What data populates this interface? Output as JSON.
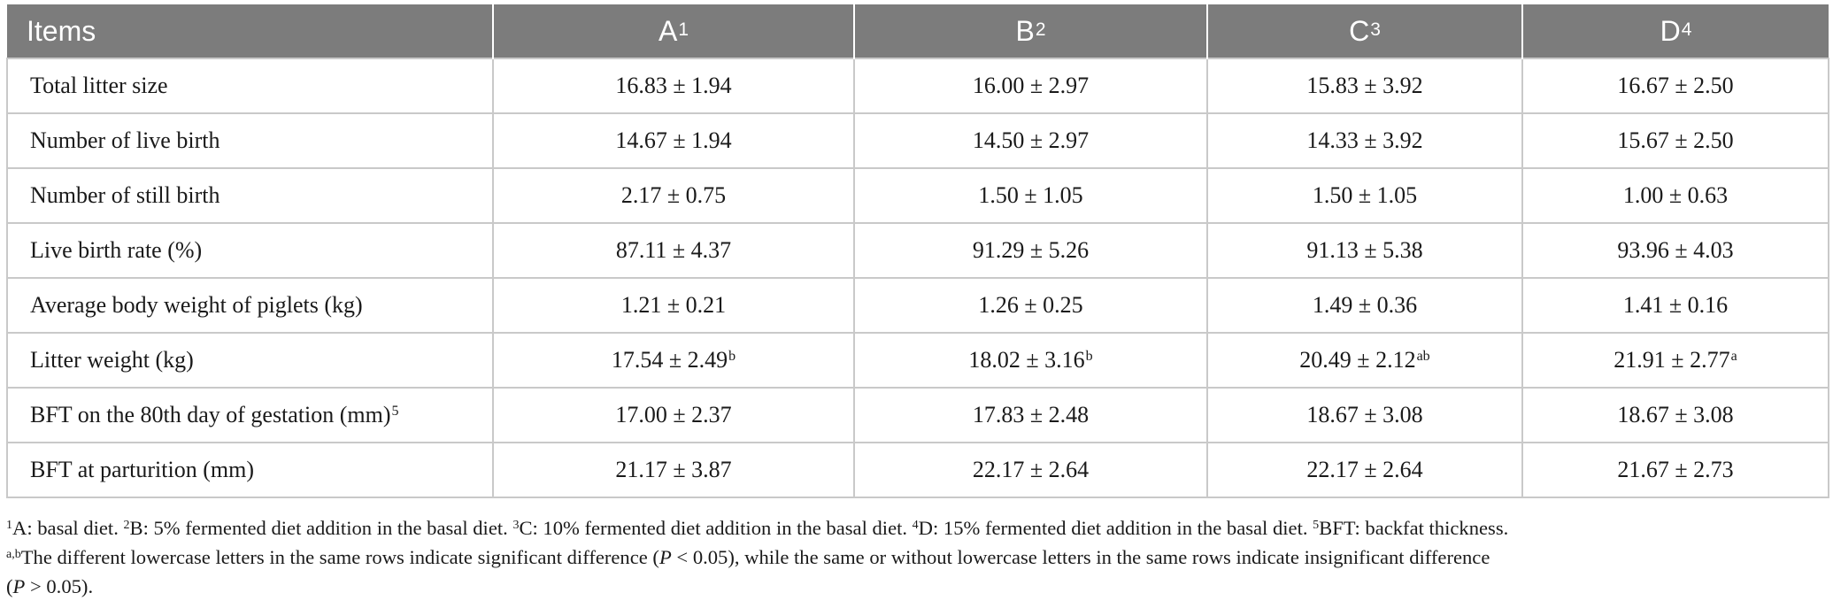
{
  "table": {
    "header": {
      "items": "Items",
      "cols": [
        {
          "label": "A",
          "sup": "1"
        },
        {
          "label": "B",
          "sup": "2"
        },
        {
          "label": "C",
          "sup": "3"
        },
        {
          "label": "D",
          "sup": "4"
        }
      ]
    },
    "rows": [
      {
        "item": "Total litter size",
        "item_sup": "",
        "cells": [
          {
            "v": "16.83 ± 1.94",
            "s": ""
          },
          {
            "v": "16.00 ± 2.97",
            "s": ""
          },
          {
            "v": "15.83 ± 3.92",
            "s": ""
          },
          {
            "v": "16.67 ± 2.50",
            "s": ""
          }
        ]
      },
      {
        "item": "Number of live birth",
        "item_sup": "",
        "cells": [
          {
            "v": "14.67 ± 1.94",
            "s": ""
          },
          {
            "v": "14.50 ± 2.97",
            "s": ""
          },
          {
            "v": "14.33 ± 3.92",
            "s": ""
          },
          {
            "v": "15.67 ± 2.50",
            "s": ""
          }
        ]
      },
      {
        "item": "Number of still birth",
        "item_sup": "",
        "cells": [
          {
            "v": "2.17 ± 0.75",
            "s": ""
          },
          {
            "v": "1.50 ± 1.05",
            "s": ""
          },
          {
            "v": "1.50 ± 1.05",
            "s": ""
          },
          {
            "v": "1.00 ± 0.63",
            "s": ""
          }
        ]
      },
      {
        "item": "Live birth rate (%)",
        "item_sup": "",
        "cells": [
          {
            "v": "87.11 ± 4.37",
            "s": ""
          },
          {
            "v": "91.29 ± 5.26",
            "s": ""
          },
          {
            "v": "91.13 ± 5.38",
            "s": ""
          },
          {
            "v": "93.96 ± 4.03",
            "s": ""
          }
        ]
      },
      {
        "item": "Average body weight of piglets (kg)",
        "item_sup": "",
        "cells": [
          {
            "v": "1.21 ± 0.21",
            "s": ""
          },
          {
            "v": "1.26 ± 0.25",
            "s": ""
          },
          {
            "v": "1.49 ± 0.36",
            "s": ""
          },
          {
            "v": "1.41 ± 0.16",
            "s": ""
          }
        ]
      },
      {
        "item": "Litter weight (kg)",
        "item_sup": "",
        "cells": [
          {
            "v": "17.54 ± 2.49",
            "s": "b"
          },
          {
            "v": "18.02 ± 3.16",
            "s": "b"
          },
          {
            "v": "20.49 ± 2.12",
            "s": "ab"
          },
          {
            "v": "21.91 ± 2.77",
            "s": "a"
          }
        ]
      },
      {
        "item": "BFT on the 80th day of gestation (mm)",
        "item_sup": "5",
        "cells": [
          {
            "v": "17.00 ± 2.37",
            "s": ""
          },
          {
            "v": "17.83 ± 2.48",
            "s": ""
          },
          {
            "v": "18.67 ± 3.08",
            "s": ""
          },
          {
            "v": "18.67 ± 3.08",
            "s": ""
          }
        ]
      },
      {
        "item": "BFT at parturition (mm)",
        "item_sup": "",
        "cells": [
          {
            "v": "21.17 ± 3.87",
            "s": ""
          },
          {
            "v": "22.17 ± 2.64",
            "s": ""
          },
          {
            "v": "22.17 ± 2.64",
            "s": ""
          },
          {
            "v": "21.67 ± 2.73",
            "s": ""
          }
        ]
      }
    ]
  },
  "footnotes": {
    "line1": [
      {
        "sup": "1",
        "text": "A: basal diet. "
      },
      {
        "sup": "2",
        "text": "B: 5% fermented diet addition in the basal diet. "
      },
      {
        "sup": "3",
        "text": "C: 10% fermented diet addition in the basal diet. "
      },
      {
        "sup": "4",
        "text": "D: 15% fermented diet addition in the basal diet. "
      },
      {
        "sup": "5",
        "text": "BFT: backfat thickness."
      }
    ],
    "line2": {
      "sup": "a,b",
      "t1": "The different lowercase letters in the same rows indicate significant difference (",
      "p1": "P",
      "t2": " < 0.05), while the same or without lowercase letters in the same rows indicate insignificant difference"
    },
    "line3": {
      "t1": "(",
      "p": "P",
      "t2": " > 0.05)."
    }
  }
}
